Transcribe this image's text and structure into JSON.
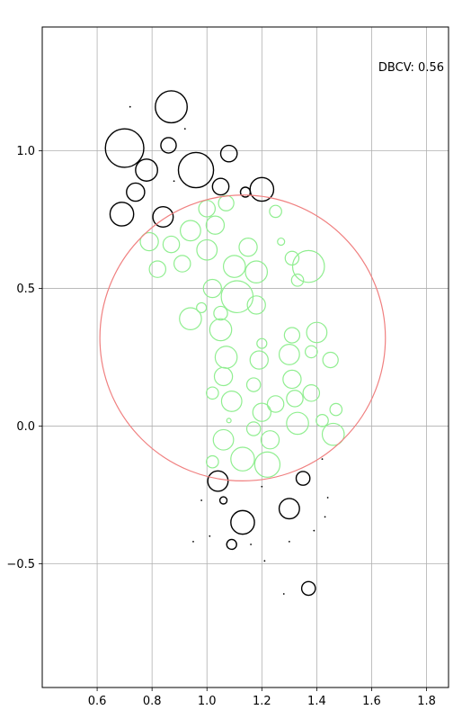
{
  "chart_data": {
    "type": "scatter",
    "annotation": "DBCV: 0.56",
    "xlim": [
      0.4,
      1.88
    ],
    "ylim": [
      -0.95,
      1.45
    ],
    "grid": true,
    "x_ticks": [
      "0.6",
      "0.8",
      "1.0",
      "1.2",
      "1.4",
      "1.6",
      "1.8"
    ],
    "x_tick_values": [
      0.6,
      0.8,
      1.0,
      1.2,
      1.4,
      1.6,
      1.8
    ],
    "y_ticks": [
      "1.0",
      "0.5",
      "0.0",
      "−0.5"
    ],
    "y_tick_values": [
      1.0,
      0.5,
      0.0,
      -0.5
    ],
    "colors": {
      "cluster": "#90ee90",
      "noise": "#000000",
      "boundary": "#f08080",
      "grid": "#b0b0b0",
      "axes": "#000000"
    },
    "boundary_circle": {
      "cx": 1.13,
      "cy": 0.32,
      "r": 0.52
    },
    "series": [
      {
        "color": "#90ee90",
        "points": [
          [
            0.79,
            0.67,
            0.033
          ],
          [
            0.87,
            0.66,
            0.03
          ],
          [
            0.94,
            0.71,
            0.037
          ],
          [
            1.0,
            0.79,
            0.03
          ],
          [
            1.07,
            0.81,
            0.028
          ],
          [
            1.03,
            0.73,
            0.033
          ],
          [
            1.25,
            0.78,
            0.022
          ],
          [
            1.0,
            0.64,
            0.037
          ],
          [
            0.82,
            0.57,
            0.03
          ],
          [
            0.91,
            0.59,
            0.03
          ],
          [
            1.15,
            0.65,
            0.033
          ],
          [
            1.1,
            0.58,
            0.04
          ],
          [
            1.18,
            0.56,
            0.04
          ],
          [
            1.37,
            0.58,
            0.058
          ],
          [
            1.31,
            0.61,
            0.025
          ],
          [
            1.33,
            0.53,
            0.022
          ],
          [
            1.02,
            0.5,
            0.033
          ],
          [
            1.11,
            0.47,
            0.058
          ],
          [
            1.18,
            0.44,
            0.033
          ],
          [
            0.94,
            0.39,
            0.04
          ],
          [
            1.05,
            0.41,
            0.025
          ],
          [
            1.05,
            0.35,
            0.04
          ],
          [
            1.31,
            0.33,
            0.028
          ],
          [
            1.4,
            0.34,
            0.037
          ],
          [
            1.2,
            0.3,
            0.018
          ],
          [
            1.07,
            0.25,
            0.04
          ],
          [
            1.3,
            0.26,
            0.037
          ],
          [
            1.38,
            0.27,
            0.022
          ],
          [
            1.19,
            0.24,
            0.033
          ],
          [
            1.45,
            0.24,
            0.028
          ],
          [
            1.06,
            0.18,
            0.033
          ],
          [
            1.31,
            0.17,
            0.033
          ],
          [
            1.17,
            0.15,
            0.025
          ],
          [
            1.02,
            0.12,
            0.022
          ],
          [
            1.38,
            0.12,
            0.03
          ],
          [
            1.09,
            0.09,
            0.037
          ],
          [
            1.25,
            0.08,
            0.03
          ],
          [
            1.32,
            0.1,
            0.03
          ],
          [
            1.2,
            0.05,
            0.033
          ],
          [
            1.47,
            0.06,
            0.022
          ],
          [
            1.33,
            0.01,
            0.04
          ],
          [
            1.42,
            0.02,
            0.022
          ],
          [
            1.08,
            0.02,
            0.008
          ],
          [
            1.17,
            -0.01,
            0.025
          ],
          [
            1.06,
            -0.05,
            0.037
          ],
          [
            1.46,
            -0.03,
            0.04
          ],
          [
            1.23,
            -0.05,
            0.033
          ],
          [
            1.02,
            -0.13,
            0.022
          ],
          [
            1.13,
            -0.12,
            0.043
          ],
          [
            1.22,
            -0.14,
            0.046
          ],
          [
            0.98,
            0.43,
            0.018
          ],
          [
            1.27,
            0.67,
            0.013
          ]
        ]
      },
      {
        "color": "#000000",
        "points": [
          [
            0.7,
            1.01,
            0.07
          ],
          [
            0.87,
            1.16,
            0.058
          ],
          [
            0.86,
            1.02,
            0.028
          ],
          [
            0.96,
            0.93,
            0.064
          ],
          [
            1.08,
            0.99,
            0.03
          ],
          [
            0.78,
            0.93,
            0.04
          ],
          [
            0.74,
            0.85,
            0.033
          ],
          [
            1.05,
            0.87,
            0.03
          ],
          [
            1.14,
            0.85,
            0.018
          ],
          [
            1.2,
            0.86,
            0.043
          ],
          [
            0.69,
            0.77,
            0.043
          ],
          [
            0.84,
            0.76,
            0.037
          ],
          [
            1.04,
            -0.2,
            0.037
          ],
          [
            1.35,
            -0.19,
            0.025
          ],
          [
            1.06,
            -0.27,
            0.013
          ],
          [
            1.13,
            -0.35,
            0.043
          ],
          [
            1.3,
            -0.3,
            0.037
          ],
          [
            1.09,
            -0.43,
            0.018
          ],
          [
            1.37,
            -0.59,
            0.025
          ]
        ]
      }
    ],
    "specks": [
      [
        0.72,
        1.16
      ],
      [
        0.92,
        1.08
      ],
      [
        0.88,
        0.89
      ],
      [
        0.98,
        -0.27
      ],
      [
        1.2,
        -0.22
      ],
      [
        1.44,
        -0.26
      ],
      [
        1.43,
        -0.33
      ],
      [
        1.39,
        -0.38
      ],
      [
        1.01,
        -0.4
      ],
      [
        0.95,
        -0.42
      ],
      [
        1.3,
        -0.42
      ],
      [
        1.16,
        -0.43
      ],
      [
        1.21,
        -0.49
      ],
      [
        1.28,
        -0.61
      ],
      [
        1.42,
        -0.12
      ]
    ]
  }
}
